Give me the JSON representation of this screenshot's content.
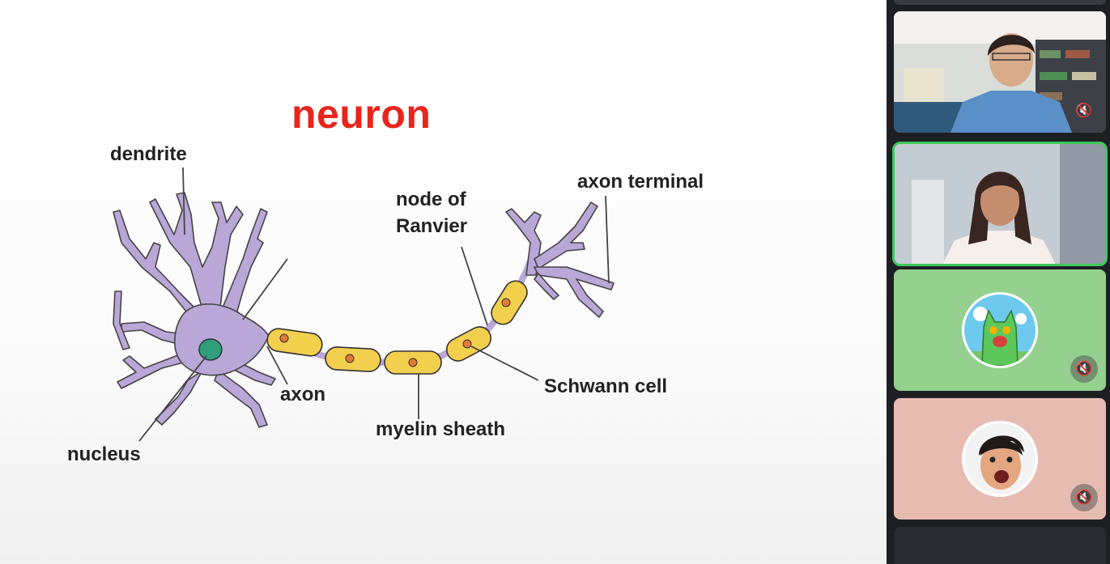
{
  "slide": {
    "title": "neuron",
    "labels": {
      "dendrite": "dendrite",
      "nucleus": "nucleus",
      "axon": "axon",
      "node_of": "node of",
      "ranvier": "Ranvier",
      "axon_terminal": "axon terminal",
      "schwann_cell": "Schwann cell",
      "myelin_sheath": "myelin sheath"
    },
    "colors": {
      "title": "#e8251d",
      "neuron_body": "#b9a7d8",
      "nucleus": "#2f9e7a",
      "myelin": "#f3cf4e",
      "myelin_dot": "#e27a35"
    }
  },
  "participants": [
    {
      "id": "participant-1",
      "kind": "video",
      "mic_icon": "mic-off-icon",
      "active_speaker": false
    },
    {
      "id": "participant-2",
      "kind": "video",
      "mic_icon": "",
      "active_speaker": true
    },
    {
      "id": "participant-3",
      "kind": "avatar",
      "avatar_icon": "green-cat-monster-icon",
      "tile_color": "#94d18f",
      "mic_icon": "mic-off-icon",
      "active_speaker": false
    },
    {
      "id": "participant-4",
      "kind": "avatar",
      "avatar_icon": "surprised-face-icon",
      "tile_color": "#e7bcb0",
      "mic_icon": "mic-off-icon",
      "active_speaker": false
    }
  ]
}
